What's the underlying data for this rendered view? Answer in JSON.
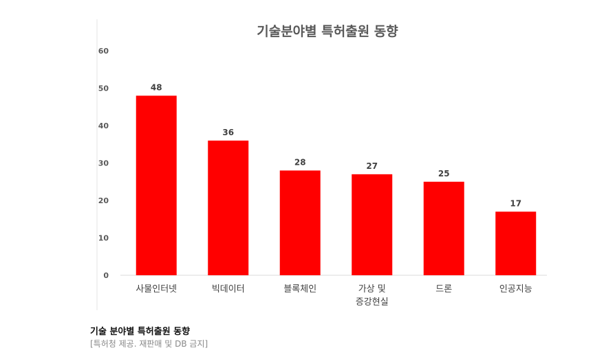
{
  "chart_data": {
    "type": "bar",
    "title": "기술분야별 특허출원 동향",
    "xlabel": "",
    "ylabel": "",
    "categories": [
      "사물인터넷",
      "빅데이터",
      "블록체인",
      "가상 및\n증강현실",
      "드론",
      "인공지능"
    ],
    "values": [
      48,
      36,
      28,
      27,
      25,
      17
    ],
    "ylim": [
      0,
      60
    ],
    "yticks": [
      0,
      10,
      20,
      30,
      40,
      50,
      60
    ],
    "grid": false,
    "legend": "none",
    "bar_color": "#ff0000"
  },
  "caption": {
    "title": "기술 분야별 특허출원 동향",
    "source": "[특허청 제공. 재판매 및 DB 금지]"
  }
}
